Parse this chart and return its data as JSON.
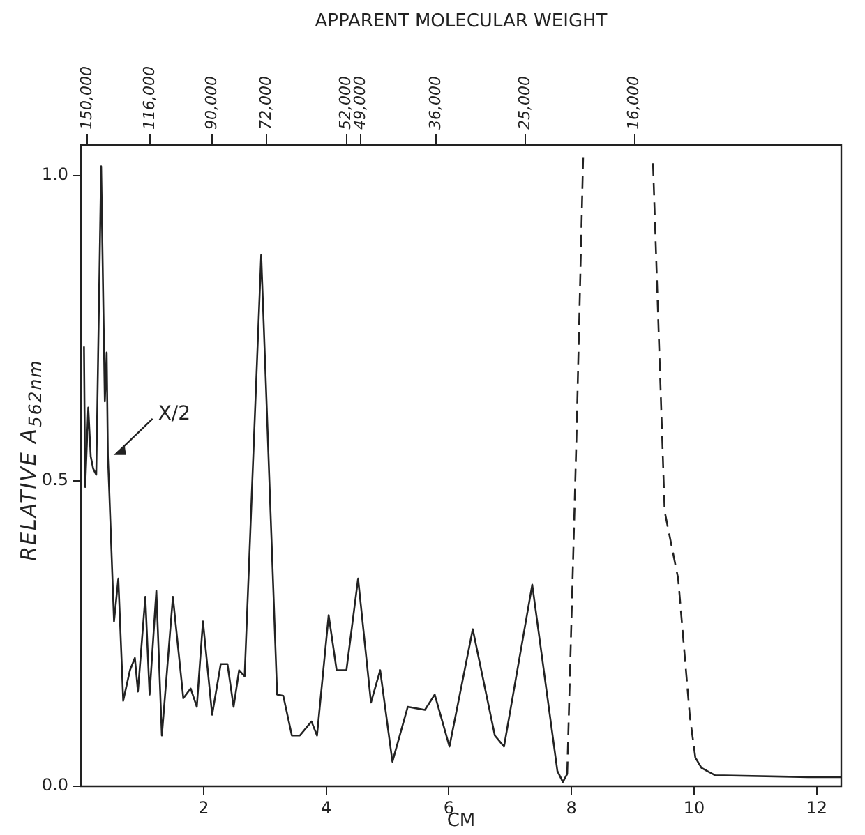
{
  "chart_data": {
    "type": "line",
    "xlabel": "CM",
    "ylabel": "RELATIVE A$_{562nm}$",
    "x2label": "APPARENT MOLECULAR WEIGHT",
    "xlim": [
      0,
      12.4
    ],
    "xticks": [
      2,
      4,
      6,
      8,
      10,
      12
    ],
    "x2lim": [
      154000,
      6870
    ],
    "x2ticks": [
      {
        "value": 150000,
        "label": "150,000"
      },
      {
        "value": 116000,
        "label": "116,000"
      },
      {
        "value": 90000,
        "label": "90,000"
      },
      {
        "value": 72000,
        "label": "72,000"
      },
      {
        "value": 52000,
        "label": "52,000"
      },
      {
        "value": 49000,
        "label": "49,000"
      },
      {
        "value": 36000,
        "label": "36,000"
      },
      {
        "value": 25000,
        "label": "25,000"
      },
      {
        "value": 16000,
        "label": "16,000"
      }
    ],
    "log": "x2",
    "ylim": [
      0,
      1.05
    ],
    "yticks": [
      {
        "value": 0,
        "label": "0.0"
      },
      {
        "value": 0.5,
        "label": "0.5"
      },
      {
        "value": 1,
        "label": "1.0"
      }
    ],
    "grid": false,
    "legend": false,
    "marker": "none",
    "annotations": [
      {
        "text": "X/2",
        "x": 0.44,
        "y": 0.54
      }
    ],
    "series": [
      {
        "color": "#222222",
        "line_style": "solid",
        "x": [
          0.05,
          0.07,
          0.12,
          0.16,
          0.2,
          0.25,
          0.33,
          0.39,
          0.42,
          0.44,
          0.46,
          0.54,
          0.61,
          0.69,
          0.8,
          0.88,
          0.93,
          1.05,
          1.12,
          1.23,
          1.32,
          1.5,
          1.67,
          1.79,
          1.89,
          1.99,
          2.14,
          2.28,
          2.39,
          2.49,
          2.58,
          2.67,
          2.94,
          3.2,
          3.3,
          3.44,
          3.57,
          3.76,
          3.85,
          4.04,
          4.17,
          4.33,
          4.52,
          4.73,
          4.88,
          5.08,
          5.33,
          5.61,
          5.77,
          6.01,
          6.39,
          6.75,
          6.9,
          7.36,
          7.77,
          7.86,
          7.93
        ],
        "values": [
          0.72,
          0.49,
          0.62,
          0.54,
          0.52,
          0.51,
          1.015,
          0.63,
          0.71,
          0.54,
          0.49,
          0.27,
          0.34,
          0.14,
          0.19,
          0.21,
          0.155,
          0.31,
          0.15,
          0.32,
          0.083,
          0.31,
          0.144,
          0.16,
          0.13,
          0.27,
          0.117,
          0.2,
          0.2,
          0.13,
          0.19,
          0.18,
          0.87,
          0.15,
          0.148,
          0.083,
          0.083,
          0.106,
          0.083,
          0.28,
          0.19,
          0.19,
          0.34,
          0.137,
          0.19,
          0.04,
          0.13,
          0.125,
          0.15,
          0.065,
          0.257,
          0.083,
          0.065,
          0.33,
          0.025,
          0.007,
          0.02
        ]
      },
      {
        "color": "#222222",
        "line_style": "dashed",
        "x": [
          7.93,
          8.08,
          8.19
        ],
        "values": [
          0.02,
          0.565,
          1.03
        ]
      },
      {
        "color": "#222222",
        "line_style": "dashed",
        "x": [
          9.33,
          9.52,
          9.74,
          9.93,
          10.02
        ],
        "values": [
          1.02,
          0.45,
          0.34,
          0.115,
          0.047
        ]
      },
      {
        "color": "#222222",
        "line_style": "solid",
        "x": [
          10.02,
          10.12,
          10.34,
          11.86,
          12.39
        ],
        "values": [
          0.047,
          0.03,
          0.018,
          0.015,
          0.015
        ]
      }
    ]
  }
}
